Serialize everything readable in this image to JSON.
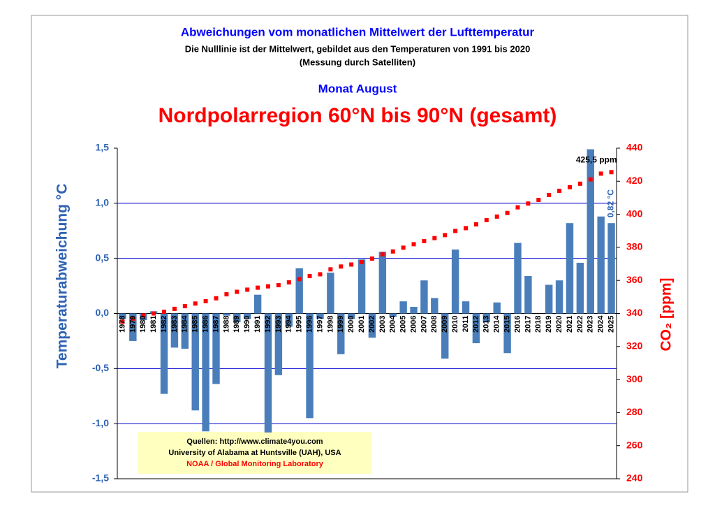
{
  "chart_data": {
    "type": "bar",
    "title": "Abweichungen vom monatlichen Mittelwert der Lufttemperatur",
    "subtitle": "Die Nulllinie ist der Mittelwert, gebildet aus den Temperaturen von 1991 bis 2020",
    "subtitle2": "(Messung durch Satelliten)",
    "month": "Monat August",
    "region": "Nordpolarregion 60°N bis 90°N (gesamt)",
    "ylabel": "Temperaturabweichung °C",
    "y2label": "CO₂ [ppm]",
    "categories": [
      "1978",
      "1979",
      "1980",
      "1981",
      "1982",
      "1983",
      "1984",
      "1985",
      "1986",
      "1987",
      "1988",
      "1989",
      "1990",
      "1991",
      "1992",
      "1993",
      "1994",
      "1995",
      "1996",
      "1997",
      "1998",
      "1999",
      "2000",
      "2001",
      "2002",
      "2003",
      "2004",
      "2005",
      "2006",
      "2007",
      "2008",
      "2009",
      "2010",
      "2011",
      "2012",
      "2013",
      "2014",
      "2015",
      "2016",
      "2017",
      "2018",
      "2019",
      "2020",
      "2021",
      "2022",
      "2023",
      "2024",
      "2025"
    ],
    "series": [
      {
        "color": "#4a7ebb",
        "values": [
          -0.05,
          -0.25,
          -0.06,
          0.02,
          -0.73,
          -0.31,
          -0.32,
          -0.88,
          -1.07,
          -0.64,
          -0.02,
          -0.08,
          -0.05,
          0.17,
          -1.08,
          -0.56,
          -0.12,
          0.41,
          -0.95,
          -0.05,
          0.37,
          -0.37,
          -0.05,
          0.49,
          -0.22,
          0.56,
          -0.03,
          0.11,
          0.06,
          0.3,
          0.14,
          -0.41,
          0.58,
          0.11,
          -0.27,
          -0.08,
          0.1,
          -0.36,
          0.64,
          0.34,
          0.0,
          0.26,
          0.3,
          0.82,
          0.46,
          1.49,
          0.88,
          0.82
        ]
      },
      {
        "color": "#ff0000",
        "axis": "y2",
        "values": [
          335.0,
          336.9,
          338.8,
          340.0,
          341.0,
          342.8,
          344.4,
          346.0,
          347.4,
          349.2,
          351.6,
          353.1,
          354.4,
          355.6,
          356.4,
          357.1,
          358.8,
          360.8,
          362.6,
          363.7,
          366.7,
          368.4,
          369.6,
          371.1,
          373.2,
          375.8,
          377.5,
          379.8,
          381.9,
          383.8,
          385.6,
          387.4,
          389.9,
          391.6,
          393.9,
          396.5,
          398.6,
          400.8,
          404.2,
          406.5,
          408.7,
          411.7,
          414.2,
          416.4,
          418.5,
          421.1,
          424.6,
          425.5
        ]
      }
    ],
    "annotations": [
      "425,5 ppm",
      "0,82 °C"
    ],
    "ylim": [
      -1.5,
      1.5
    ],
    "yticks": [
      {
        "value": -1.5,
        "label": "-1,5"
      },
      {
        "value": -1.0,
        "label": "-1,0"
      },
      {
        "value": -0.5,
        "label": "-0,5"
      },
      {
        "value": 0,
        "label": "0,0"
      },
      {
        "value": 0.5,
        "label": "0,5"
      },
      {
        "value": 1.0,
        "label": "1,0"
      },
      {
        "value": 1.5,
        "label": "1,5"
      }
    ],
    "y2lim": [
      240,
      440
    ],
    "y2ticks": [
      240,
      260,
      280,
      300,
      320,
      340,
      360,
      380,
      400,
      420,
      440
    ],
    "grid": true,
    "sources": [
      "Quellen: http://www.climate4you.com",
      "University of Alabama at Huntsville (UAH), USA",
      "NOAA / Global Monitoring Laboratory"
    ]
  }
}
